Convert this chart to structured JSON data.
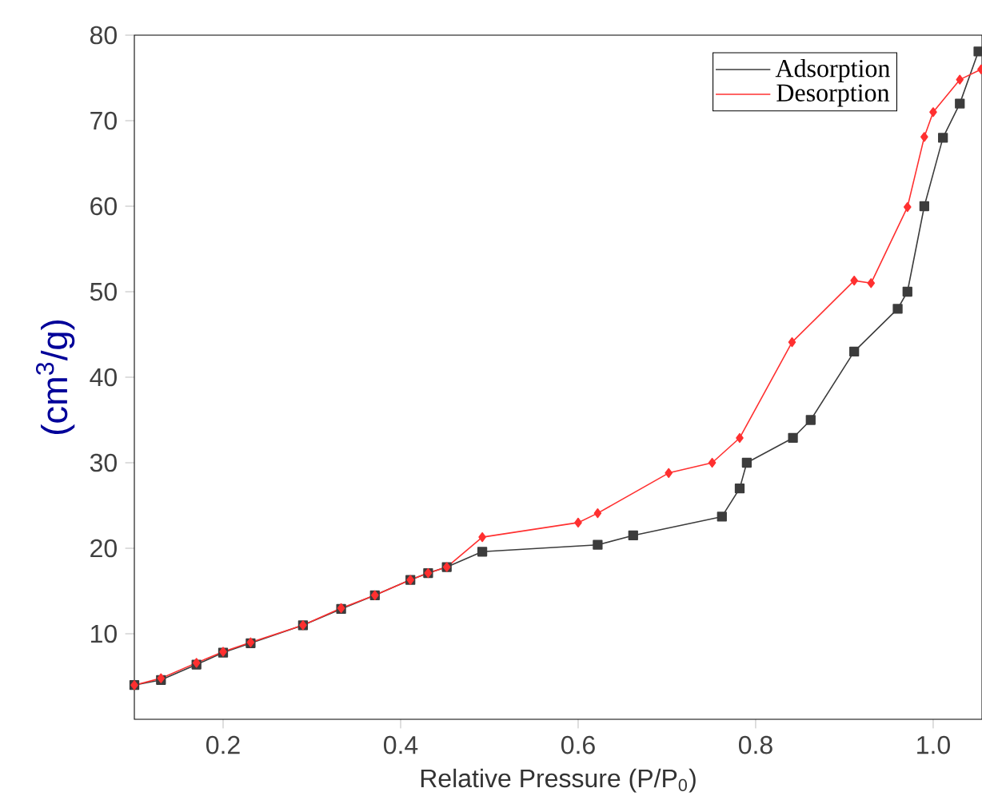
{
  "chart_data": {
    "type": "line",
    "xlabel": "Relative Pressure (P/P$_{0}$)",
    "ylabel": "(cm$^{3}$/g)",
    "xlim": [
      0.1,
      1.055
    ],
    "ylim": [
      0,
      80
    ],
    "xticks": [
      0.2,
      0.4,
      0.6,
      0.8,
      {
        "value": 1.0,
        "label": "1.0"
      }
    ],
    "yticks": [
      10,
      20,
      30,
      40,
      50,
      60,
      70,
      80
    ],
    "legend": "top right",
    "grid": false,
    "series": [
      {
        "name": "Adsorption",
        "color": "#3c3c3c",
        "marker": "square",
        "x": [
          0.1,
          0.13,
          0.17,
          0.2,
          0.231,
          0.29,
          0.333,
          0.371,
          0.411,
          0.431,
          0.452,
          0.492,
          0.622,
          0.662,
          0.762,
          0.782,
          0.79,
          0.842,
          0.862,
          0.911,
          0.96,
          0.971,
          0.99,
          1.011,
          1.03,
          1.051
        ],
        "values": [
          4,
          4.6,
          6.4,
          7.8,
          8.9,
          11.0,
          12.9,
          14.5,
          16.3,
          17.1,
          17.8,
          19.6,
          20.4,
          21.5,
          23.7,
          27.0,
          30,
          32.9,
          35,
          43.0,
          48,
          50.0,
          60,
          68.0,
          72.0,
          78.1
        ]
      },
      {
        "name": "Desorption",
        "color": "#ff3030",
        "marker": "diamond",
        "x": [
          0.1,
          0.13,
          0.17,
          0.2,
          0.231,
          0.29,
          0.333,
          0.371,
          0.411,
          0.431,
          0.452,
          0.492,
          0.6,
          0.622,
          0.702,
          0.751,
          0.782,
          0.841,
          0.911,
          0.93,
          0.971,
          0.99,
          1.0,
          1.03,
          1.054
        ],
        "values": [
          4,
          4.8,
          6.6,
          7.9,
          9.0,
          11.0,
          13.0,
          14.5,
          16.3,
          17.1,
          17.8,
          21.3,
          23,
          24.1,
          28.8,
          30,
          32.9,
          44.1,
          51.3,
          51,
          59.9,
          68.1,
          71,
          74.8,
          76
        ]
      }
    ]
  }
}
